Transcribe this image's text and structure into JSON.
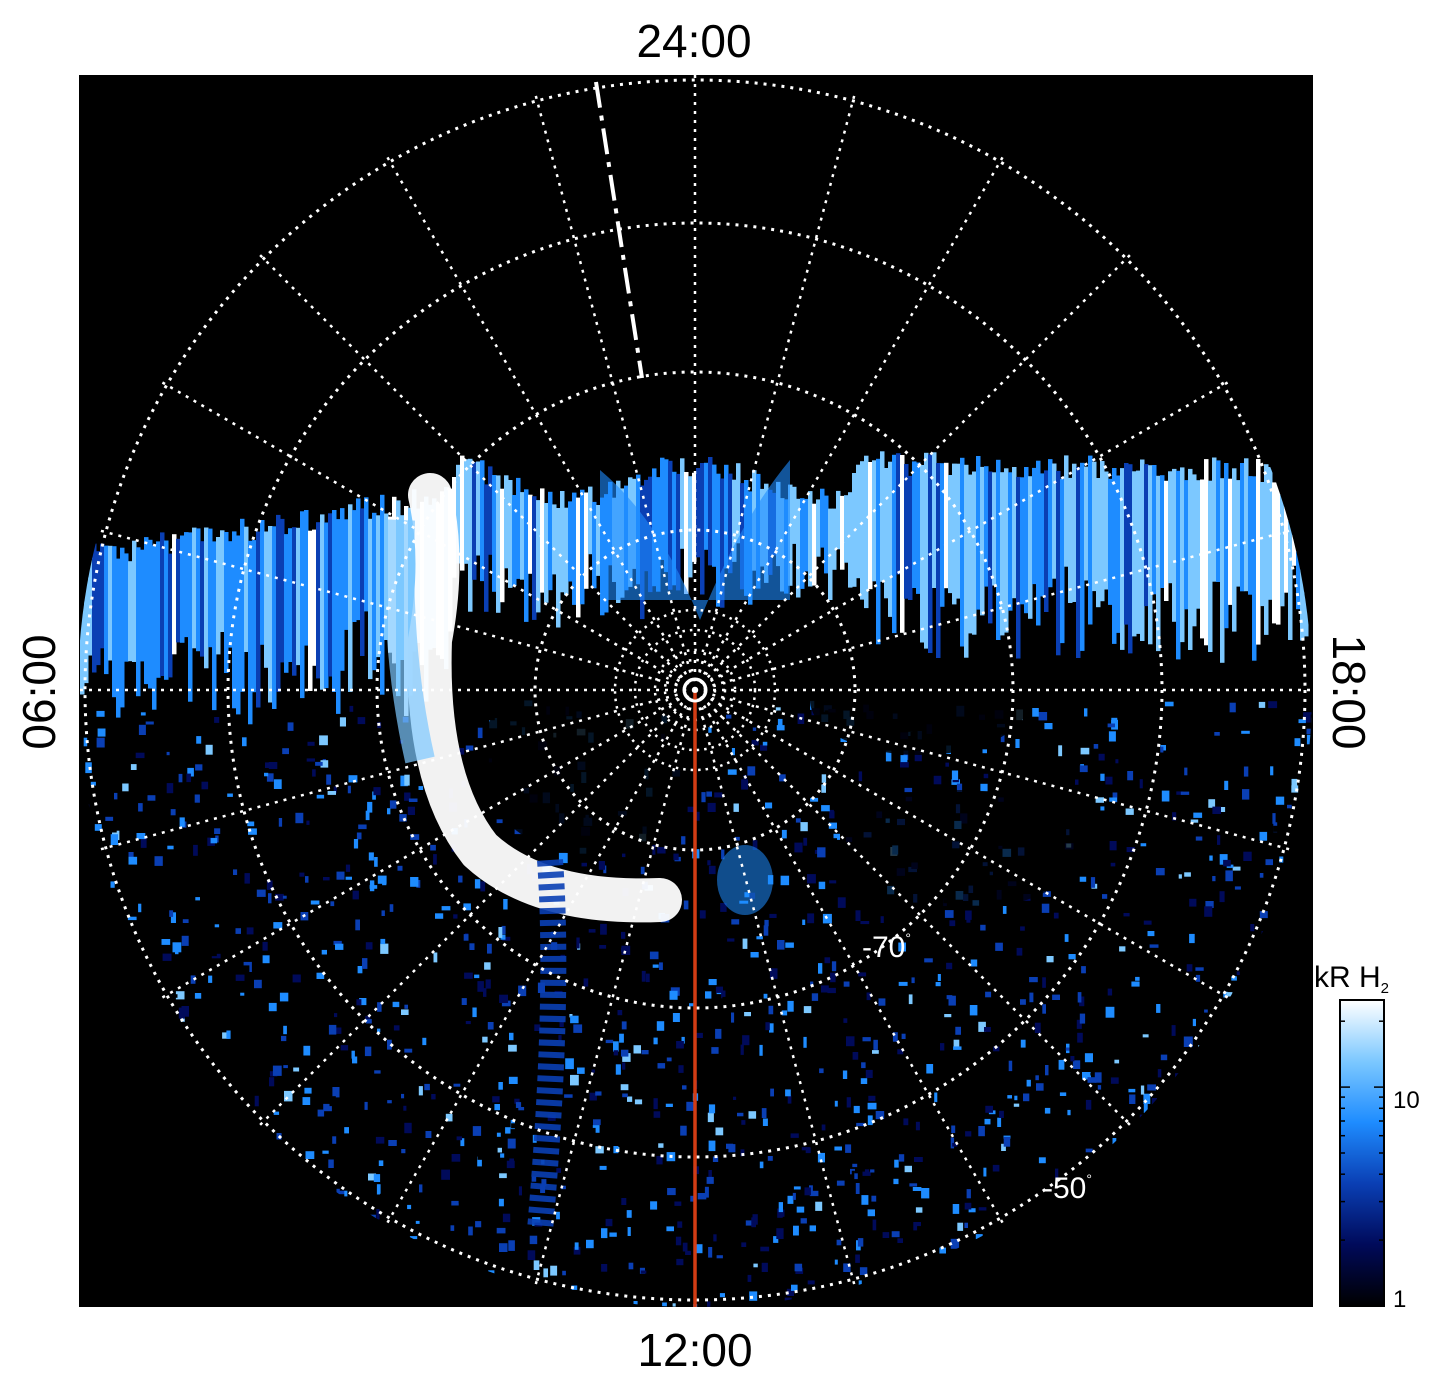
{
  "local_time_labels": {
    "top": "24:00",
    "bottom": "12:00",
    "left": "06:00",
    "right": "18:00"
  },
  "latitude_labels": [
    {
      "value": "-70",
      "unit": "°"
    },
    {
      "value": "-50",
      "unit": "°"
    }
  ],
  "colorbar": {
    "title_main": "kR H",
    "title_sub": "2",
    "scale": "log",
    "range": [
      1,
      25
    ],
    "tick_labels": [
      "10",
      "1"
    ],
    "colors": [
      "#000000",
      "#000a5a",
      "#0a3fb4",
      "#1e8cff",
      "#7cc8ff",
      "#ffffff"
    ]
  },
  "colors": {
    "background": "#000000",
    "grid": "#ffffff",
    "meridian_line": "#d23c14",
    "auroral_emission": "#1e8cff"
  }
}
